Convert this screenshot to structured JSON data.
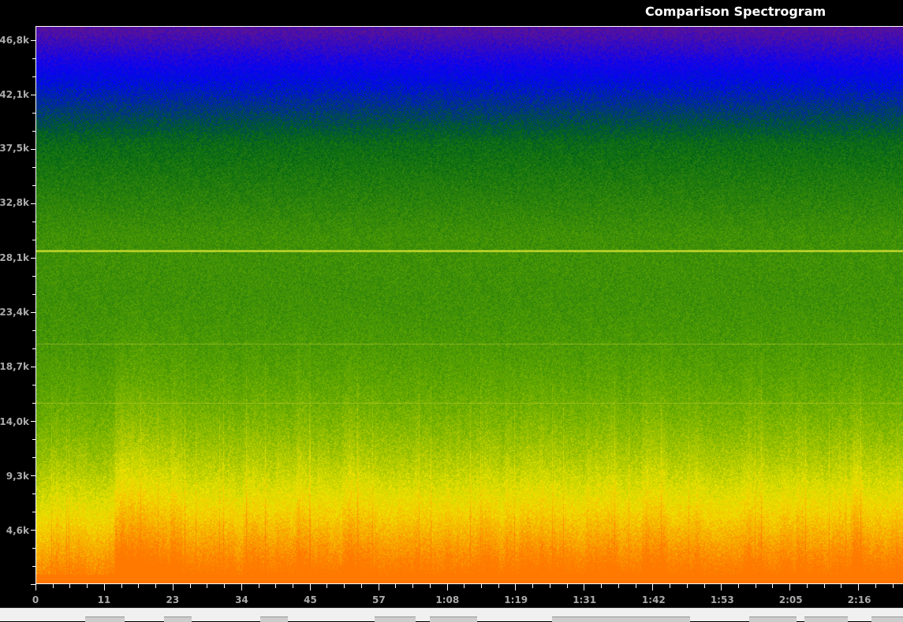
{
  "chart_data": {
    "type": "heatmap",
    "title": "Comparison Spectrogram",
    "xlabel": "",
    "ylabel": "",
    "x_ticks": [
      "0",
      "11",
      "23",
      "34",
      "45",
      "57",
      "1:08",
      "1:19",
      "1:31",
      "1:42",
      "1:53",
      "2:05",
      "2:16"
    ],
    "x_tick_seconds": [
      0,
      11.3,
      22.6,
      34,
      45.3,
      56.6,
      67.9,
      79.2,
      90.5,
      101.9,
      113.2,
      124.5,
      135.8
    ],
    "xlim_seconds": [
      0,
      143
    ],
    "y_ticks": [
      "46,8k",
      "42,1k",
      "37,5k",
      "32,8k",
      "28,1k",
      "23,4k",
      "18,7k",
      "14,0k",
      "9,3k",
      "4,6k"
    ],
    "y_tick_hz": [
      46800,
      42100,
      37500,
      32800,
      28100,
      23400,
      18700,
      14000,
      9300,
      4600
    ],
    "ylim_hz": [
      0,
      48000
    ],
    "colormap": [
      "#64148c",
      "#0000ff",
      "#006414",
      "#64aa00",
      "#f0e600",
      "#ff7800"
    ],
    "line_frequencies_hz": [
      28700,
      20700,
      15600
    ],
    "grid": false,
    "legend": "none"
  }
}
